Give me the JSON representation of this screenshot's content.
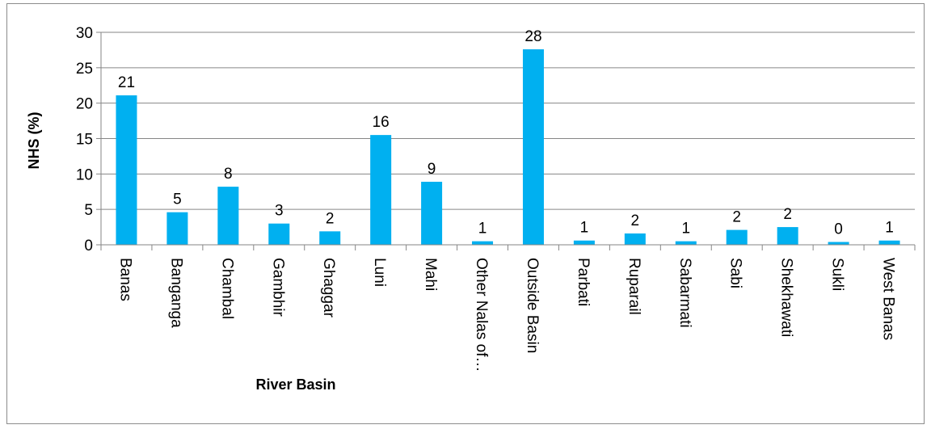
{
  "chart_data": {
    "type": "bar",
    "xlabel": "River Basin",
    "ylabel": "NHS (%)",
    "ylim": [
      0,
      30
    ],
    "yticks": [
      0,
      5,
      10,
      15,
      20,
      25,
      30
    ],
    "grid": true,
    "legend": "none",
    "bar_color": "#00b0f0",
    "categories": [
      "Banas",
      "Banganga",
      "Chambal",
      "Gambhir",
      "Ghaggar",
      "Luni",
      "Mahi",
      "Other Nalas of…",
      "Outside Basin",
      "Parbati",
      "Ruparail",
      "Sabarmati",
      "Sabi",
      "Shekhawati",
      "Sukli",
      "West Banas"
    ],
    "values": [
      21.1,
      4.6,
      8.2,
      3.0,
      1.9,
      15.5,
      8.9,
      0.5,
      27.6,
      0.6,
      1.6,
      0.5,
      2.1,
      2.5,
      0.4,
      0.6
    ],
    "data_labels": [
      "21",
      "5",
      "8",
      "3",
      "2",
      "16",
      "9",
      "1",
      "28",
      "1",
      "2",
      "1",
      "2",
      "2",
      "0",
      "1"
    ]
  }
}
